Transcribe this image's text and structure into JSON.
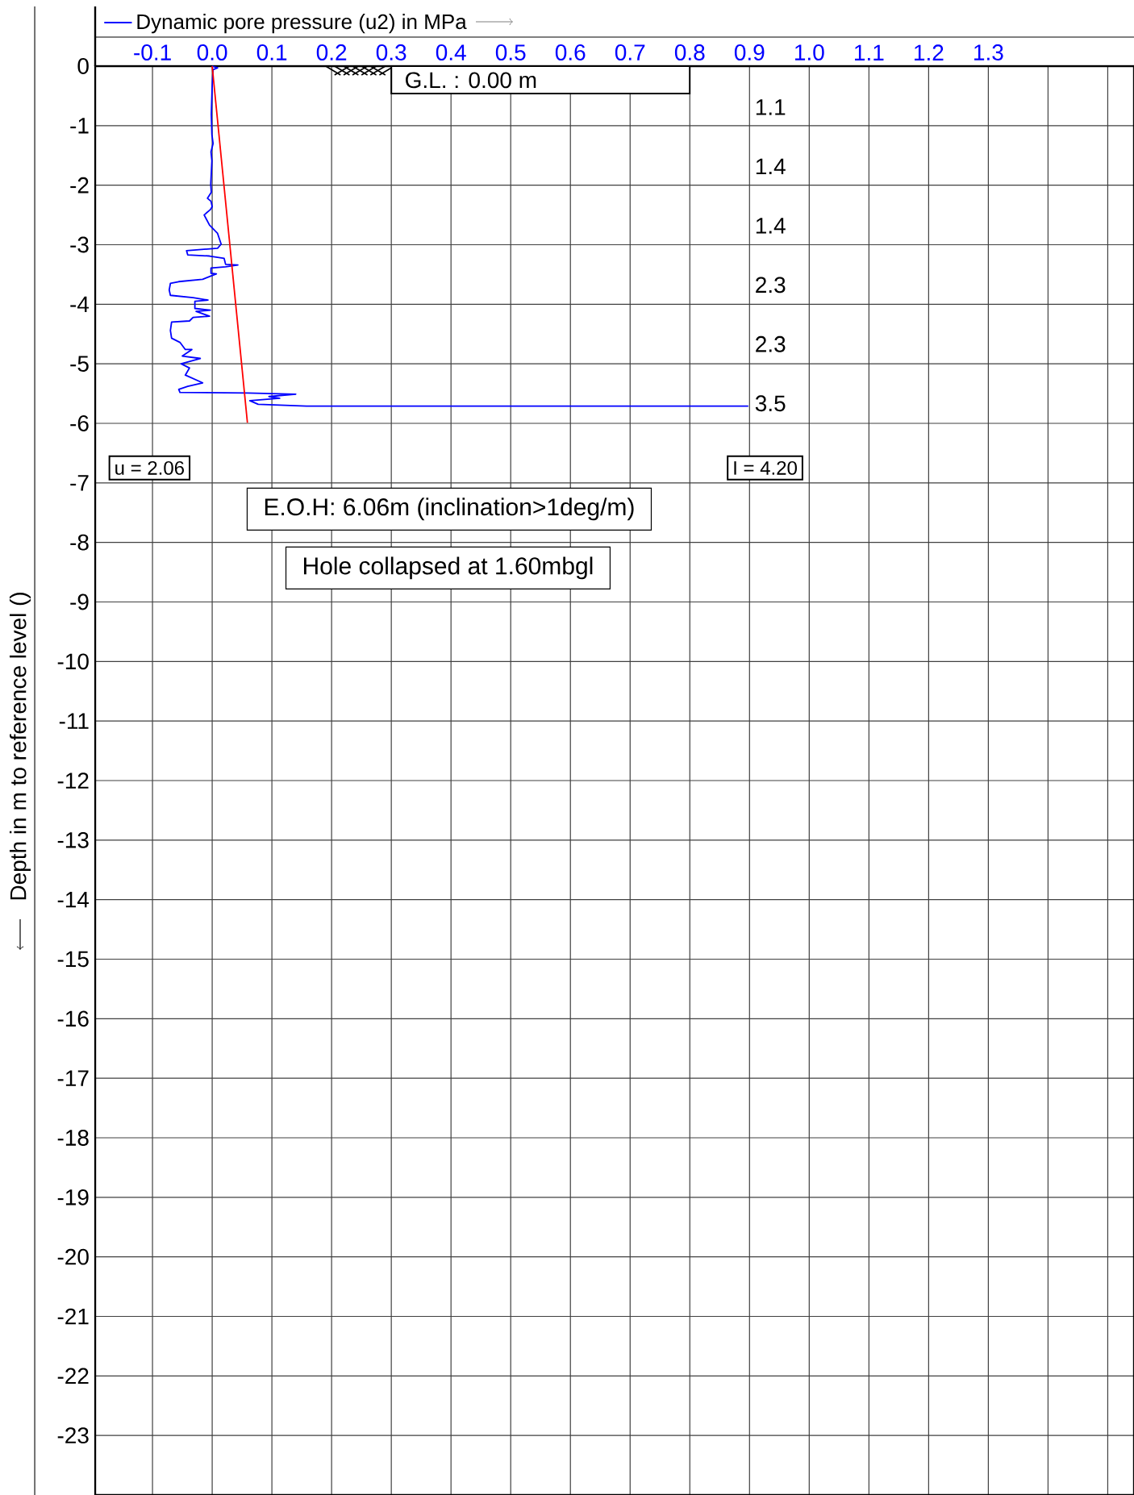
{
  "chart_data": {
    "type": "line",
    "ylabel": "Depth in m to reference level ()",
    "series": [
      {
        "name": "Dynamic pore pressure (u2) in MPa",
        "color": "#0000ff",
        "x": [
          0,
          0.009,
          0.0015,
          0,
          -0.0015,
          -0.0005,
          0.0015,
          -0.002,
          -0.0005,
          -0.0024,
          -0.0015,
          -0.008,
          -0.002,
          0,
          -0.003,
          -0.0135,
          -0.0045,
          0.009,
          0.015,
          0.009,
          -0.043,
          -0.041,
          -0.0045,
          0.02,
          0.0225,
          0.043,
          0.0225,
          -0.002,
          -0.002,
          0.007,
          -0.016,
          -0.056,
          -0.07,
          -0.072,
          -0.07,
          -0.032,
          -0.007,
          -0.029,
          -0.029,
          -0.003,
          -0.027,
          -0.0045,
          -0.032,
          -0.038,
          -0.068,
          -0.07,
          -0.068,
          -0.054,
          -0.045,
          -0.034,
          -0.05,
          -0.02,
          -0.052,
          -0.038,
          -0.045,
          -0.016,
          -0.041,
          -0.056,
          -0.054,
          0.059,
          0.14,
          0.095,
          0.113,
          0.063,
          0.077,
          0.158,
          0.898
        ],
        "values": [
          0,
          -0.03,
          -0.06,
          -0.33,
          -0.81,
          -1.15,
          -1.3,
          -1.44,
          -1.59,
          -1.98,
          -2.12,
          -2.22,
          -2.27,
          -2.36,
          -2.41,
          -2.5,
          -2.67,
          -2.81,
          -2.99,
          -3.06,
          -3.1,
          -3.17,
          -3.19,
          -3.23,
          -3.33,
          -3.34,
          -3.37,
          -3.39,
          -3.48,
          -3.49,
          -3.58,
          -3.62,
          -3.65,
          -3.76,
          -3.85,
          -3.89,
          -3.93,
          -3.95,
          -4.07,
          -4.1,
          -4.12,
          -4.2,
          -4.22,
          -4.28,
          -4.3,
          -4.44,
          -4.57,
          -4.64,
          -4.76,
          -4.76,
          -4.87,
          -4.91,
          -5,
          -5.07,
          -5.19,
          -5.32,
          -5.38,
          -5.43,
          -5.48,
          -5.49,
          -5.51,
          -5.55,
          -5.58,
          -5.62,
          -5.68,
          -5.71,
          -5.71
        ]
      },
      {
        "color": "#ff0000",
        "x": [
          0,
          0.059
        ],
        "values": [
          0,
          -5.99
        ]
      }
    ],
    "xlim": [
      -0.196,
      1.544
    ],
    "ylim": [
      -24,
      0
    ],
    "xticks": [
      -0.1,
      {
        "value": 0,
        "label": "0.0"
      },
      0.1,
      0.2,
      0.3,
      0.4,
      0.5,
      0.6,
      0.7,
      0.8,
      0.9,
      {
        "value": 1,
        "label": "1.0"
      },
      1.1,
      1.2,
      1.3,
      {
        "value": 1.4,
        "label": null
      },
      {
        "value": 1.5,
        "label": null
      }
    ],
    "yticks": [
      0,
      -1,
      -2,
      -3,
      -4,
      -5,
      -6,
      -7,
      -8,
      -9,
      -10,
      -11,
      -12,
      -13,
      -14,
      -15,
      -16,
      -17,
      -18,
      -19,
      -20,
      -21,
      -22,
      -23
    ],
    "grid": true,
    "legend": "top left",
    "annotations": [
      "G.L. :   0.00  m",
      "u = 2.06",
      "I = 4.20",
      "E.O.H: 6.06m (inclination>1deg/m)",
      "Hole collapsed at 1.60mbgl",
      "1.1",
      "1.4",
      "1.4",
      "2.3",
      "2.3",
      "3.5"
    ]
  }
}
